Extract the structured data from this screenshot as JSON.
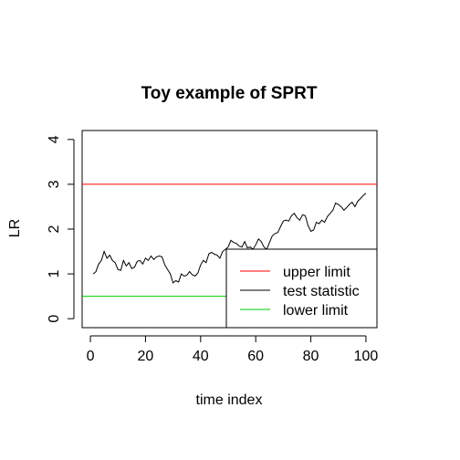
{
  "chart_data": {
    "type": "line",
    "title": "Toy example of SPRT",
    "xlabel": "time index",
    "ylabel": "LR",
    "xlim": [
      -3,
      104
    ],
    "ylim": [
      -0.2,
      4.2
    ],
    "x_ticks": [
      0,
      20,
      40,
      60,
      80,
      100
    ],
    "y_ticks": [
      0,
      1,
      2,
      3,
      4
    ],
    "x_tick_labels": [
      "0",
      "20",
      "40",
      "60",
      "80",
      "100"
    ],
    "y_tick_labels": [
      "0",
      "1",
      "2",
      "3",
      "4"
    ],
    "grid": false,
    "legend_position": "bottom-right",
    "upper_limit": 3.0,
    "lower_limit": 0.5,
    "series": [
      {
        "name": "test statistic",
        "color": "#000000",
        "x": [
          1,
          2,
          3,
          4,
          5,
          6,
          7,
          8,
          9,
          10,
          11,
          12,
          13,
          14,
          15,
          16,
          17,
          18,
          19,
          20,
          21,
          22,
          23,
          24,
          25,
          26,
          27,
          28,
          29,
          30,
          31,
          32,
          33,
          34,
          35,
          36,
          37,
          38,
          39,
          40,
          41,
          42,
          43,
          44,
          45,
          46,
          47,
          48,
          49,
          50,
          51,
          52,
          53,
          54,
          55,
          56,
          57,
          58,
          59,
          60,
          61,
          62,
          63,
          64,
          65,
          66,
          67,
          68,
          69,
          70,
          71,
          72,
          73,
          74,
          75,
          76,
          77,
          78,
          79,
          80,
          81,
          82,
          83,
          84,
          85,
          86,
          87,
          88,
          89,
          90,
          91,
          92,
          93,
          94,
          95,
          96,
          97,
          98,
          99,
          100
        ],
        "y": [
          1.0,
          1.05,
          1.22,
          1.3,
          1.5,
          1.35,
          1.42,
          1.3,
          1.25,
          1.1,
          1.08,
          1.3,
          1.18,
          1.25,
          1.12,
          1.15,
          1.28,
          1.3,
          1.22,
          1.35,
          1.3,
          1.4,
          1.32,
          1.38,
          1.4,
          1.38,
          1.2,
          1.1,
          1.0,
          0.8,
          0.85,
          0.82,
          1.0,
          0.95,
          0.97,
          1.05,
          0.98,
          0.95,
          1.02,
          1.2,
          1.3,
          1.25,
          1.45,
          1.48,
          1.44,
          1.42,
          1.35,
          1.5,
          1.55,
          1.6,
          1.75,
          1.7,
          1.68,
          1.62,
          1.6,
          1.72,
          1.58,
          1.6,
          1.55,
          1.65,
          1.78,
          1.72,
          1.6,
          1.55,
          1.7,
          1.85,
          1.9,
          1.92,
          2.05,
          2.18,
          2.2,
          2.18,
          2.3,
          2.35,
          2.25,
          2.2,
          2.32,
          2.3,
          2.08,
          1.95,
          1.98,
          2.15,
          2.12,
          2.2,
          2.15,
          2.28,
          2.35,
          2.42,
          2.58,
          2.55,
          2.5,
          2.42,
          2.48,
          2.55,
          2.6,
          2.5,
          2.62,
          2.68,
          2.75,
          2.8
        ]
      },
      {
        "name": "upper limit",
        "color": "#ff0000"
      },
      {
        "name": "lower limit",
        "color": "#00cd00"
      }
    ]
  }
}
